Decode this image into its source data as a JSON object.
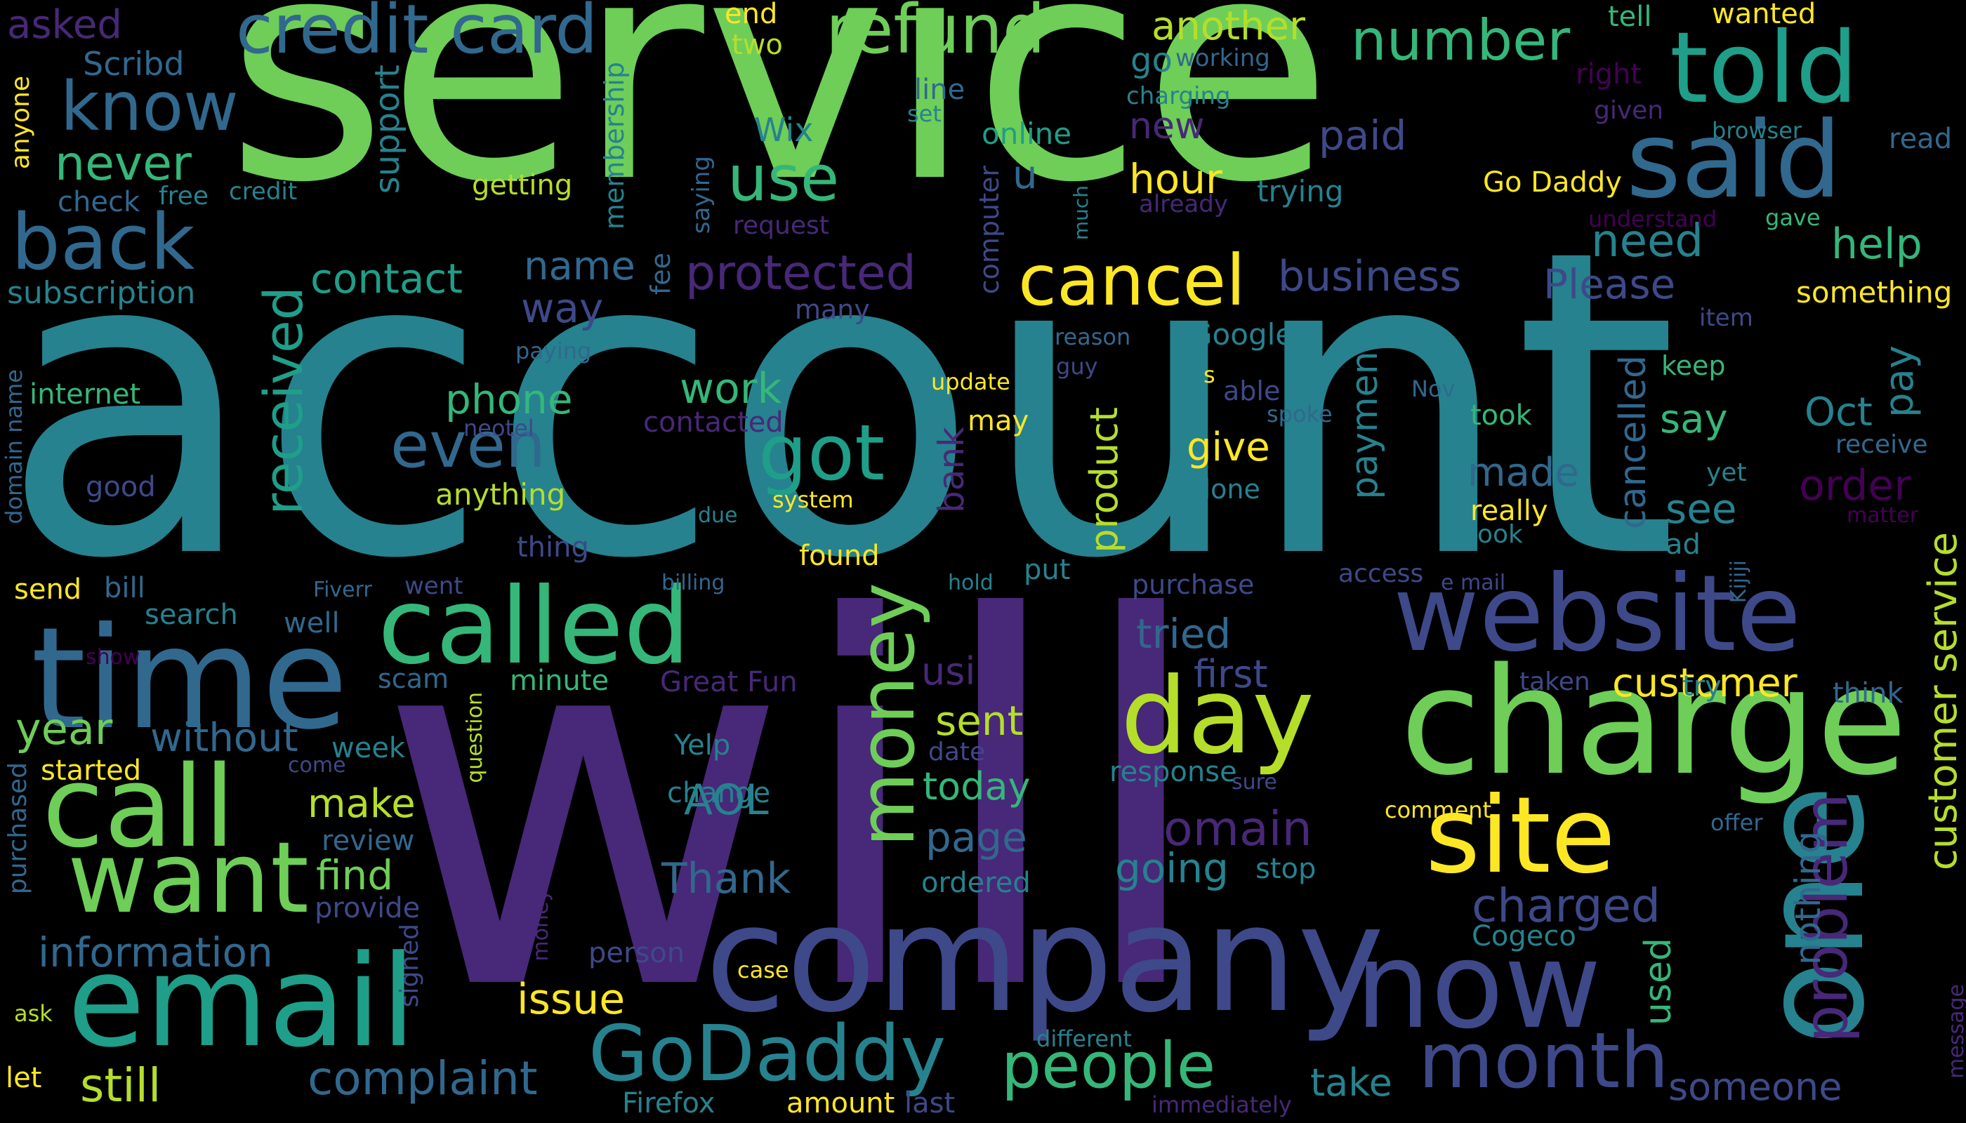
{
  "colors": {
    "background": "#000000",
    "palette": [
      "#440154",
      "#482878",
      "#3e4989",
      "#31688e",
      "#26828e",
      "#1f9e89",
      "#35b779",
      "#6ece58",
      "#b5de2b",
      "#fde725"
    ]
  },
  "words": [
    {
      "text": "account",
      "color": "#26828e"
    },
    {
      "text": "will",
      "color": "#482878"
    },
    {
      "text": "service",
      "color": "#6ece58"
    },
    {
      "text": "company",
      "color": "#3e4989"
    },
    {
      "text": "time",
      "color": "#31688e"
    },
    {
      "text": "charge",
      "color": "#6ece58"
    },
    {
      "text": "one",
      "color": "#26828e"
    },
    {
      "text": "email",
      "color": "#1f9e89"
    },
    {
      "text": "website",
      "color": "#3e4989"
    },
    {
      "text": "called",
      "color": "#35b779"
    },
    {
      "text": "call",
      "color": "#6ece58"
    },
    {
      "text": "now",
      "color": "#3e4989"
    },
    {
      "text": "want",
      "color": "#6ece58"
    },
    {
      "text": "site",
      "color": "#fde725"
    },
    {
      "text": "day",
      "color": "#b5de2b"
    },
    {
      "text": "said",
      "color": "#31688e"
    },
    {
      "text": "told",
      "color": "#1f9e89"
    },
    {
      "text": "credit card",
      "color": "#31688e"
    },
    {
      "text": "refund",
      "color": "#6ece58"
    },
    {
      "text": "back",
      "color": "#31688e"
    },
    {
      "text": "know",
      "color": "#31688e"
    },
    {
      "text": "money",
      "color": "#6ece58"
    },
    {
      "text": "month",
      "color": "#3e4989"
    },
    {
      "text": "GoDaddy",
      "color": "#26828e"
    },
    {
      "text": "people",
      "color": "#35b779"
    },
    {
      "text": "got",
      "color": "#1f9e89"
    },
    {
      "text": "cancel",
      "color": "#fde725"
    },
    {
      "text": "use",
      "color": "#35b779"
    },
    {
      "text": "problem",
      "color": "#482878"
    },
    {
      "text": "even",
      "color": "#31688e"
    },
    {
      "text": "number",
      "color": "#35b779"
    },
    {
      "text": "received",
      "color": "#1f9e89"
    },
    {
      "text": "never",
      "color": "#35b779"
    },
    {
      "text": "complaint",
      "color": "#31688e"
    },
    {
      "text": "still",
      "color": "#b5de2b"
    },
    {
      "text": "domain",
      "color": "#482878"
    },
    {
      "text": "customer service",
      "color": "#b5de2b"
    },
    {
      "text": "customer",
      "color": "#fde725"
    },
    {
      "text": "charged",
      "color": "#3e4989"
    },
    {
      "text": "information",
      "color": "#31688e"
    },
    {
      "text": "protected",
      "color": "#482878"
    },
    {
      "text": "business",
      "color": "#3e4989"
    },
    {
      "text": "going",
      "color": "#26828e"
    },
    {
      "text": "find",
      "color": "#6ece58"
    },
    {
      "text": "issue",
      "color": "#fde725"
    },
    {
      "text": "year",
      "color": "#6ece58"
    },
    {
      "text": "without",
      "color": "#31688e"
    },
    {
      "text": "contact",
      "color": "#1f9e89"
    },
    {
      "text": "phone",
      "color": "#35b779"
    },
    {
      "text": "work",
      "color": "#35b779"
    },
    {
      "text": "make",
      "color": "#b5de2b"
    },
    {
      "text": "AOL",
      "color": "#26828e"
    },
    {
      "text": "Thank",
      "color": "#31688e"
    },
    {
      "text": "page",
      "color": "#31688e"
    },
    {
      "text": "today",
      "color": "#35b779"
    },
    {
      "text": "sent",
      "color": "#b5de2b"
    },
    {
      "text": "tried",
      "color": "#31688e"
    },
    {
      "text": "first",
      "color": "#3e4989"
    },
    {
      "text": "need",
      "color": "#26828e"
    },
    {
      "text": "help",
      "color": "#35b779"
    },
    {
      "text": "Please",
      "color": "#3e4989"
    },
    {
      "text": "paid",
      "color": "#3e4989"
    },
    {
      "text": "hour",
      "color": "#fde725"
    },
    {
      "text": "another",
      "color": "#b5de2b"
    },
    {
      "text": "say",
      "color": "#35b779"
    },
    {
      "text": "Oct",
      "color": "#26828e"
    },
    {
      "text": "pay",
      "color": "#26828e"
    },
    {
      "text": "order",
      "color": "#440154"
    },
    {
      "text": "see",
      "color": "#26828e"
    },
    {
      "text": "made",
      "color": "#31688e"
    },
    {
      "text": "give",
      "color": "#fde725"
    },
    {
      "text": "way",
      "color": "#3e4989"
    },
    {
      "text": "name",
      "color": "#31688e"
    },
    {
      "text": "support",
      "color": "#26828e"
    },
    {
      "text": "payment",
      "color": "#26828e"
    },
    {
      "text": "product",
      "color": "#b5de2b"
    },
    {
      "text": "cancelled",
      "color": "#31688e"
    },
    {
      "text": "used",
      "color": "#35b779"
    },
    {
      "text": "nothing",
      "color": "#31688e"
    },
    {
      "text": "someone",
      "color": "#3e4989"
    },
    {
      "text": "take",
      "color": "#26828e"
    },
    {
      "text": "using",
      "color": "#482878"
    },
    {
      "text": "asked",
      "color": "#482878"
    },
    {
      "text": "Scribd",
      "color": "#31688e"
    },
    {
      "text": "check",
      "color": "#31688e"
    },
    {
      "text": "free",
      "color": "#26828e"
    },
    {
      "text": "credit",
      "color": "#26828e"
    },
    {
      "text": "subscription",
      "color": "#26828e"
    },
    {
      "text": "anyone",
      "color": "#fde725"
    },
    {
      "text": "end",
      "color": "#fde725"
    },
    {
      "text": "two",
      "color": "#b5de2b"
    },
    {
      "text": "go",
      "color": "#26828e"
    },
    {
      "text": "working",
      "color": "#31688e"
    },
    {
      "text": "charging",
      "color": "#26828e"
    },
    {
      "text": "new",
      "color": "#482878"
    },
    {
      "text": "tell",
      "color": "#35b779"
    },
    {
      "text": "wanted",
      "color": "#fde725"
    },
    {
      "text": "right",
      "color": "#440154"
    },
    {
      "text": "given",
      "color": "#482878"
    },
    {
      "text": "browser",
      "color": "#26828e"
    },
    {
      "text": "read",
      "color": "#31688e"
    },
    {
      "text": "line",
      "color": "#31688e"
    },
    {
      "text": "set",
      "color": "#26828e"
    },
    {
      "text": "Wix",
      "color": "#26828e"
    },
    {
      "text": "online",
      "color": "#1f9e89"
    },
    {
      "text": "u",
      "color": "#31688e"
    },
    {
      "text": "trying",
      "color": "#26828e"
    },
    {
      "text": "Go Daddy",
      "color": "#fde725"
    },
    {
      "text": "understand",
      "color": "#440154"
    },
    {
      "text": "gave",
      "color": "#35b779"
    },
    {
      "text": "getting",
      "color": "#b5de2b"
    },
    {
      "text": "membership",
      "color": "#26828e"
    },
    {
      "text": "saying",
      "color": "#31688e"
    },
    {
      "text": "request",
      "color": "#482878"
    },
    {
      "text": "computer",
      "color": "#3e4989"
    },
    {
      "text": "much",
      "color": "#26828e"
    },
    {
      "text": "already",
      "color": "#482878"
    },
    {
      "text": "fee",
      "color": "#31688e"
    },
    {
      "text": "many",
      "color": "#3e4989"
    },
    {
      "text": "something",
      "color": "#fde725"
    },
    {
      "text": "item",
      "color": "#3e4989"
    },
    {
      "text": "Google",
      "color": "#26828e"
    },
    {
      "text": "reason",
      "color": "#31688e"
    },
    {
      "text": "paying",
      "color": "#31688e"
    },
    {
      "text": "guy",
      "color": "#3e4989"
    },
    {
      "text": "internet",
      "color": "#35b779"
    },
    {
      "text": "domain name",
      "color": "#31688e"
    },
    {
      "text": "update",
      "color": "#fde725"
    },
    {
      "text": "s",
      "color": "#fde725"
    },
    {
      "text": "able",
      "color": "#3e4989"
    },
    {
      "text": "Nov",
      "color": "#31688e"
    },
    {
      "text": "keep",
      "color": "#35b779"
    },
    {
      "text": "took",
      "color": "#35b779"
    },
    {
      "text": "spoke",
      "color": "#31688e"
    },
    {
      "text": "neotel",
      "color": "#3e4989"
    },
    {
      "text": "contacted",
      "color": "#482878"
    },
    {
      "text": "may",
      "color": "#fde725"
    },
    {
      "text": "bank",
      "color": "#482878"
    },
    {
      "text": "receive",
      "color": "#31688e"
    },
    {
      "text": "yet",
      "color": "#26828e"
    },
    {
      "text": "good",
      "color": "#3e4989"
    },
    {
      "text": "anything",
      "color": "#b5de2b"
    },
    {
      "text": "due",
      "color": "#26828e"
    },
    {
      "text": "system",
      "color": "#fde725"
    },
    {
      "text": "done",
      "color": "#26828e"
    },
    {
      "text": "really",
      "color": "#fde725"
    },
    {
      "text": "matter",
      "color": "#440154"
    },
    {
      "text": "look",
      "color": "#26828e"
    },
    {
      "text": "ad",
      "color": "#26828e"
    },
    {
      "text": "thing",
      "color": "#3e4989"
    },
    {
      "text": "found",
      "color": "#fde725"
    },
    {
      "text": "send",
      "color": "#fde725"
    },
    {
      "text": "bill",
      "color": "#31688e"
    },
    {
      "text": "Fiverr",
      "color": "#31688e"
    },
    {
      "text": "went",
      "color": "#3e4989"
    },
    {
      "text": "billing",
      "color": "#31688e"
    },
    {
      "text": "hold",
      "color": "#26828e"
    },
    {
      "text": "put",
      "color": "#26828e"
    },
    {
      "text": "purchase",
      "color": "#3e4989"
    },
    {
      "text": "access",
      "color": "#3e4989"
    },
    {
      "text": "e mail",
      "color": "#3e4989"
    },
    {
      "text": "Kijiji",
      "color": "#31688e"
    },
    {
      "text": "search",
      "color": "#26828e"
    },
    {
      "text": "well",
      "color": "#31688e"
    },
    {
      "text": "show",
      "color": "#440154"
    },
    {
      "text": "scam",
      "color": "#31688e"
    },
    {
      "text": "minute",
      "color": "#35b779"
    },
    {
      "text": "Great Fun",
      "color": "#482878"
    },
    {
      "text": "try",
      "color": "#26828e"
    },
    {
      "text": "taken",
      "color": "#3e4989"
    },
    {
      "text": "think",
      "color": "#31688e"
    },
    {
      "text": "started",
      "color": "#fde725"
    },
    {
      "text": "come",
      "color": "#3e4989"
    },
    {
      "text": "week",
      "color": "#26828e"
    },
    {
      "text": "question",
      "color": "#b5de2b"
    },
    {
      "text": "Yelp",
      "color": "#26828e"
    },
    {
      "text": "date",
      "color": "#3e4989"
    },
    {
      "text": "response",
      "color": "#26828e"
    },
    {
      "text": "sure",
      "color": "#3e4989"
    },
    {
      "text": "purchased",
      "color": "#31688e"
    },
    {
      "text": "review",
      "color": "#31688e"
    },
    {
      "text": "change",
      "color": "#26828e"
    },
    {
      "text": "comment",
      "color": "#fde725"
    },
    {
      "text": "offer",
      "color": "#31688e"
    },
    {
      "text": "provide",
      "color": "#3e4989"
    },
    {
      "text": "stop",
      "color": "#26828e"
    },
    {
      "text": "ordered",
      "color": "#26828e"
    },
    {
      "text": "Cogeco",
      "color": "#26828e"
    },
    {
      "text": "money back",
      "color": "#482878"
    },
    {
      "text": "signed",
      "color": "#3e4989"
    },
    {
      "text": "person",
      "color": "#3e4989"
    },
    {
      "text": "case",
      "color": "#fde725"
    },
    {
      "text": "ask",
      "color": "#b5de2b"
    },
    {
      "text": "message",
      "color": "#482878"
    },
    {
      "text": "different",
      "color": "#26828e"
    },
    {
      "text": "let",
      "color": "#fde725"
    },
    {
      "text": "Firefox",
      "color": "#26828e"
    },
    {
      "text": "amount",
      "color": "#fde725"
    },
    {
      "text": "last",
      "color": "#3e4989"
    },
    {
      "text": "immediately",
      "color": "#482878"
    }
  ]
}
